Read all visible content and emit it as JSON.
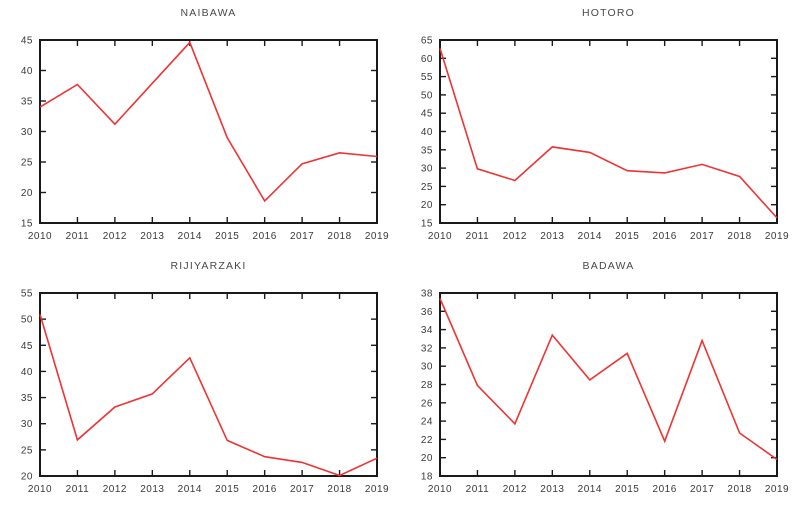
{
  "style": {
    "background_color": "#ffffff",
    "line_color": "#ee3333",
    "axis_color": "#1a1a1a",
    "tick_label_color": "#3a3a3a",
    "title_color": "#4a4a4a"
  },
  "chart_data": [
    {
      "type": "line",
      "title": "NAIBAWA",
      "x": [
        "2010",
        "2011",
        "2012",
        "2013",
        "2014",
        "2015",
        "2016",
        "2017",
        "2018",
        "2019"
      ],
      "values": [
        34.0,
        37.7,
        31.2,
        37.9,
        44.6,
        29.0,
        18.6,
        24.7,
        26.5,
        25.9
      ],
      "xlabel": "",
      "ylabel": "",
      "ylim": [
        15,
        45
      ],
      "ytick_step": 5,
      "grid": false,
      "legend": "none"
    },
    {
      "type": "line",
      "title": "HOTORO",
      "x": [
        "2010",
        "2011",
        "2012",
        "2013",
        "2014",
        "2015",
        "2016",
        "2017",
        "2018",
        "2019"
      ],
      "values": [
        62.7,
        29.8,
        26.6,
        35.8,
        34.3,
        29.3,
        28.7,
        31.0,
        27.7,
        16.4
      ],
      "xlabel": "",
      "ylabel": "",
      "ylim": [
        15,
        65
      ],
      "ytick_step": 5,
      "grid": false,
      "legend": "none"
    },
    {
      "type": "line",
      "title": "RIJIYARZAKI",
      "x": [
        "2010",
        "2011",
        "2012",
        "2013",
        "2014",
        "2015",
        "2016",
        "2017",
        "2018",
        "2019"
      ],
      "values": [
        50.9,
        26.9,
        33.2,
        35.7,
        42.6,
        26.8,
        23.7,
        22.6,
        20.1,
        23.4
      ],
      "xlabel": "",
      "ylabel": "",
      "ylim": [
        20,
        55
      ],
      "ytick_step": 5,
      "grid": false,
      "legend": "none"
    },
    {
      "type": "line",
      "title": "BADAWA",
      "x": [
        "2010",
        "2011",
        "2012",
        "2013",
        "2014",
        "2015",
        "2016",
        "2017",
        "2018",
        "2019"
      ],
      "values": [
        37.4,
        27.9,
        23.7,
        33.4,
        28.5,
        31.4,
        21.8,
        32.8,
        22.7,
        19.8
      ],
      "xlabel": "",
      "ylabel": "",
      "ylim": [
        18,
        38
      ],
      "ytick_step": 2,
      "grid": false,
      "legend": "none"
    }
  ]
}
